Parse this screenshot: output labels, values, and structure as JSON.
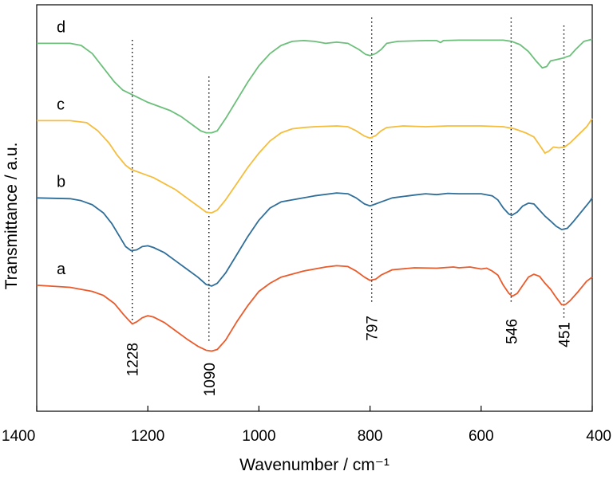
{
  "chart_data": {
    "type": "line",
    "title": "",
    "xlabel": "Wavenumber / cm⁻¹",
    "ylabel": "Transmittance / a.u.",
    "xlim": [
      1400,
      400
    ],
    "x_reversed": true,
    "y_ticks": false,
    "grid": false,
    "legend": "none",
    "x_ticks": [
      1400,
      1200,
      1000,
      800,
      600,
      400
    ],
    "x_tick_labels": [
      "1400",
      "1200",
      "1000",
      "800",
      "600",
      "400"
    ],
    "peaks": [
      {
        "x": 1228,
        "label": "1228"
      },
      {
        "x": 1090,
        "label": "1090"
      },
      {
        "x": 797,
        "label": "797"
      },
      {
        "x": 546,
        "label": "546"
      },
      {
        "x": 451,
        "label": "451"
      }
    ],
    "ylim": [
      0,
      1
    ],
    "series": [
      {
        "name": "d",
        "color": "#6cbf7a",
        "points": [
          [
            1400,
            0.905
          ],
          [
            1340,
            0.905
          ],
          [
            1320,
            0.9
          ],
          [
            1300,
            0.88
          ],
          [
            1280,
            0.845
          ],
          [
            1260,
            0.81
          ],
          [
            1245,
            0.79
          ],
          [
            1230,
            0.78
          ],
          [
            1215,
            0.77
          ],
          [
            1200,
            0.76
          ],
          [
            1180,
            0.75
          ],
          [
            1160,
            0.74
          ],
          [
            1140,
            0.725
          ],
          [
            1120,
            0.705
          ],
          [
            1105,
            0.69
          ],
          [
            1095,
            0.685
          ],
          [
            1085,
            0.685
          ],
          [
            1075,
            0.69
          ],
          [
            1060,
            0.72
          ],
          [
            1040,
            0.765
          ],
          [
            1020,
            0.81
          ],
          [
            1000,
            0.85
          ],
          [
            980,
            0.88
          ],
          [
            960,
            0.9
          ],
          [
            940,
            0.91
          ],
          [
            920,
            0.912
          ],
          [
            900,
            0.91
          ],
          [
            880,
            0.905
          ],
          [
            860,
            0.908
          ],
          [
            840,
            0.905
          ],
          [
            820,
            0.89
          ],
          [
            808,
            0.878
          ],
          [
            800,
            0.875
          ],
          [
            790,
            0.88
          ],
          [
            780,
            0.89
          ],
          [
            770,
            0.905
          ],
          [
            750,
            0.91
          ],
          [
            700,
            0.912
          ],
          [
            680,
            0.912
          ],
          [
            673,
            0.907
          ],
          [
            668,
            0.912
          ],
          [
            640,
            0.913
          ],
          [
            600,
            0.913
          ],
          [
            560,
            0.913
          ],
          [
            545,
            0.91
          ],
          [
            530,
            0.902
          ],
          [
            515,
            0.885
          ],
          [
            500,
            0.86
          ],
          [
            490,
            0.845
          ],
          [
            482,
            0.848
          ],
          [
            475,
            0.862
          ],
          [
            465,
            0.865
          ],
          [
            455,
            0.868
          ],
          [
            440,
            0.875
          ],
          [
            430,
            0.89
          ],
          [
            415,
            0.91
          ],
          [
            400,
            0.915
          ]
        ]
      },
      {
        "name": "c",
        "color": "#f5bd3b",
        "points": [
          [
            1400,
            0.715
          ],
          [
            1340,
            0.715
          ],
          [
            1310,
            0.71
          ],
          [
            1290,
            0.69
          ],
          [
            1270,
            0.66
          ],
          [
            1255,
            0.63
          ],
          [
            1240,
            0.605
          ],
          [
            1230,
            0.595
          ],
          [
            1210,
            0.585
          ],
          [
            1190,
            0.575
          ],
          [
            1170,
            0.56
          ],
          [
            1150,
            0.545
          ],
          [
            1130,
            0.525
          ],
          [
            1110,
            0.505
          ],
          [
            1095,
            0.49
          ],
          [
            1085,
            0.488
          ],
          [
            1075,
            0.495
          ],
          [
            1060,
            0.52
          ],
          [
            1040,
            0.56
          ],
          [
            1020,
            0.6
          ],
          [
            1000,
            0.635
          ],
          [
            980,
            0.665
          ],
          [
            960,
            0.685
          ],
          [
            940,
            0.695
          ],
          [
            920,
            0.698
          ],
          [
            900,
            0.7
          ],
          [
            860,
            0.702
          ],
          [
            840,
            0.7
          ],
          [
            825,
            0.69
          ],
          [
            810,
            0.677
          ],
          [
            800,
            0.672
          ],
          [
            790,
            0.678
          ],
          [
            780,
            0.69
          ],
          [
            770,
            0.698
          ],
          [
            740,
            0.702
          ],
          [
            700,
            0.7
          ],
          [
            660,
            0.702
          ],
          [
            600,
            0.702
          ],
          [
            560,
            0.7
          ],
          [
            540,
            0.695
          ],
          [
            520,
            0.685
          ],
          [
            505,
            0.675
          ],
          [
            495,
            0.655
          ],
          [
            485,
            0.635
          ],
          [
            478,
            0.64
          ],
          [
            470,
            0.65
          ],
          [
            460,
            0.648
          ],
          [
            450,
            0.65
          ],
          [
            440,
            0.66
          ],
          [
            425,
            0.68
          ],
          [
            410,
            0.7
          ],
          [
            400,
            0.72
          ]
        ]
      },
      {
        "name": "b",
        "color": "#2f6e99",
        "points": [
          [
            1400,
            0.525
          ],
          [
            1340,
            0.523
          ],
          [
            1320,
            0.518
          ],
          [
            1300,
            0.508
          ],
          [
            1280,
            0.488
          ],
          [
            1265,
            0.462
          ],
          [
            1250,
            0.428
          ],
          [
            1240,
            0.405
          ],
          [
            1230,
            0.395
          ],
          [
            1220,
            0.397
          ],
          [
            1210,
            0.405
          ],
          [
            1200,
            0.407
          ],
          [
            1190,
            0.403
          ],
          [
            1170,
            0.39
          ],
          [
            1150,
            0.37
          ],
          [
            1130,
            0.35
          ],
          [
            1110,
            0.33
          ],
          [
            1095,
            0.312
          ],
          [
            1085,
            0.308
          ],
          [
            1075,
            0.315
          ],
          [
            1060,
            0.34
          ],
          [
            1040,
            0.385
          ],
          [
            1020,
            0.43
          ],
          [
            1000,
            0.47
          ],
          [
            980,
            0.5
          ],
          [
            960,
            0.515
          ],
          [
            940,
            0.52
          ],
          [
            920,
            0.525
          ],
          [
            900,
            0.53
          ],
          [
            860,
            0.537
          ],
          [
            840,
            0.535
          ],
          [
            825,
            0.525
          ],
          [
            810,
            0.51
          ],
          [
            800,
            0.505
          ],
          [
            790,
            0.51
          ],
          [
            780,
            0.515
          ],
          [
            760,
            0.525
          ],
          [
            720,
            0.532
          ],
          [
            700,
            0.535
          ],
          [
            680,
            0.533
          ],
          [
            660,
            0.536
          ],
          [
            640,
            0.535
          ],
          [
            600,
            0.535
          ],
          [
            580,
            0.53
          ],
          [
            570,
            0.52
          ],
          [
            560,
            0.5
          ],
          [
            550,
            0.485
          ],
          [
            545,
            0.482
          ],
          [
            535,
            0.49
          ],
          [
            525,
            0.505
          ],
          [
            515,
            0.512
          ],
          [
            505,
            0.51
          ],
          [
            495,
            0.495
          ],
          [
            485,
            0.48
          ],
          [
            475,
            0.468
          ],
          [
            465,
            0.455
          ],
          [
            455,
            0.447
          ],
          [
            445,
            0.45
          ],
          [
            435,
            0.465
          ],
          [
            420,
            0.49
          ],
          [
            405,
            0.515
          ],
          [
            400,
            0.525
          ]
        ]
      },
      {
        "name": "a",
        "color": "#ea5a2a",
        "points": [
          [
            1400,
            0.31
          ],
          [
            1340,
            0.305
          ],
          [
            1300,
            0.295
          ],
          [
            1280,
            0.285
          ],
          [
            1260,
            0.265
          ],
          [
            1245,
            0.24
          ],
          [
            1235,
            0.225
          ],
          [
            1228,
            0.215
          ],
          [
            1220,
            0.22
          ],
          [
            1210,
            0.23
          ],
          [
            1200,
            0.235
          ],
          [
            1190,
            0.232
          ],
          [
            1170,
            0.218
          ],
          [
            1150,
            0.198
          ],
          [
            1130,
            0.178
          ],
          [
            1110,
            0.16
          ],
          [
            1095,
            0.15
          ],
          [
            1085,
            0.148
          ],
          [
            1075,
            0.152
          ],
          [
            1060,
            0.175
          ],
          [
            1040,
            0.22
          ],
          [
            1020,
            0.26
          ],
          [
            1000,
            0.295
          ],
          [
            980,
            0.315
          ],
          [
            960,
            0.33
          ],
          [
            920,
            0.345
          ],
          [
            880,
            0.355
          ],
          [
            860,
            0.358
          ],
          [
            840,
            0.356
          ],
          [
            825,
            0.345
          ],
          [
            810,
            0.33
          ],
          [
            800,
            0.322
          ],
          [
            790,
            0.325
          ],
          [
            780,
            0.335
          ],
          [
            760,
            0.348
          ],
          [
            720,
            0.353
          ],
          [
            680,
            0.352
          ],
          [
            650,
            0.355
          ],
          [
            640,
            0.353
          ],
          [
            620,
            0.355
          ],
          [
            600,
            0.35
          ],
          [
            590,
            0.352
          ],
          [
            580,
            0.345
          ],
          [
            570,
            0.335
          ],
          [
            560,
            0.31
          ],
          [
            550,
            0.29
          ],
          [
            544,
            0.283
          ],
          [
            535,
            0.29
          ],
          [
            525,
            0.31
          ],
          [
            515,
            0.33
          ],
          [
            505,
            0.337
          ],
          [
            495,
            0.332
          ],
          [
            485,
            0.315
          ],
          [
            475,
            0.3
          ],
          [
            465,
            0.28
          ],
          [
            455,
            0.262
          ],
          [
            448,
            0.263
          ],
          [
            440,
            0.272
          ],
          [
            425,
            0.295
          ],
          [
            410,
            0.32
          ],
          [
            400,
            0.33
          ]
        ]
      }
    ]
  }
}
